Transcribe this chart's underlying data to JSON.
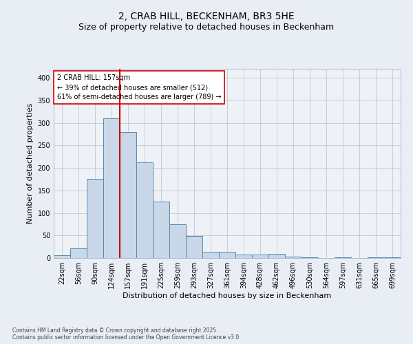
{
  "title": "2, CRAB HILL, BECKENHAM, BR3 5HE",
  "subtitle": "Size of property relative to detached houses in Beckenham",
  "xlabel": "Distribution of detached houses by size in Beckenham",
  "ylabel": "Number of detached properties",
  "bar_labels": [
    "22sqm",
    "56sqm",
    "90sqm",
    "124sqm",
    "157sqm",
    "191sqm",
    "225sqm",
    "259sqm",
    "293sqm",
    "327sqm",
    "361sqm",
    "394sqm",
    "428sqm",
    "462sqm",
    "496sqm",
    "530sqm",
    "564sqm",
    "597sqm",
    "631sqm",
    "665sqm",
    "699sqm"
  ],
  "bar_values": [
    6,
    21,
    175,
    310,
    280,
    213,
    125,
    75,
    49,
    14,
    13,
    8,
    7,
    9,
    3,
    1,
    0,
    1,
    0,
    2,
    2
  ],
  "bar_color": "#c8d8e8",
  "bar_edge_color": "#5588aa",
  "vline_x_idx": 4,
  "vline_color": "#cc0000",
  "annotation_text": "2 CRAB HILL: 157sqm\n← 39% of detached houses are smaller (512)\n61% of semi-detached houses are larger (789) →",
  "annotation_box_color": "#ffffff",
  "annotation_box_edge": "#cc0000",
  "ylim": [
    0,
    420
  ],
  "yticks": [
    0,
    50,
    100,
    150,
    200,
    250,
    300,
    350,
    400
  ],
  "background_color": "#e8eef4",
  "plot_background": "#eef2f7",
  "footer_text": "Contains HM Land Registry data © Crown copyright and database right 2025.\nContains public sector information licensed under the Open Government Licence v3.0.",
  "title_fontsize": 10,
  "subtitle_fontsize": 9,
  "xlabel_fontsize": 8,
  "ylabel_fontsize": 8,
  "tick_fontsize": 7,
  "footer_fontsize": 5.5
}
